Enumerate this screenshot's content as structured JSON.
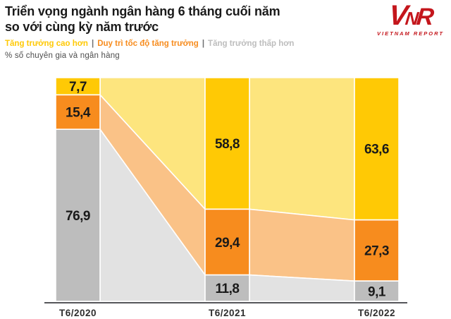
{
  "header": {
    "title_line1": "Triển vọng ngành ngân hàng 6 tháng cuối năm",
    "title_line2": "so với cùng kỳ năm trước",
    "legend_separator": "|",
    "unit_note": "% số chuyên gia và ngân hàng"
  },
  "logo": {
    "letters": [
      "V",
      "N",
      "R"
    ],
    "subtext": "VIETNAM REPORT",
    "color": "#c4161c"
  },
  "chart_data": {
    "type": "bar",
    "subtype": "stacked-percent-with-ribbons",
    "categories": [
      "T6/2020",
      "T6/2021",
      "T6/2022"
    ],
    "series": [
      {
        "name": "Tăng trưởng cao hơn",
        "values": [
          7.7,
          58.8,
          63.6
        ],
        "color": "#FFC905",
        "ribbon_color": "#FDE57E"
      },
      {
        "name": "Duy trì tốc độ tăng trưởng",
        "values": [
          15.4,
          29.4,
          27.3
        ],
        "color": "#F78C1E",
        "ribbon_color": "#FAC287"
      },
      {
        "name": "Tăng trưởng thấp hơn",
        "values": [
          76.9,
          11.8,
          9.1
        ],
        "color": "#BDBDBD",
        "ribbon_color": "#E2E2E2"
      }
    ],
    "value_format": "decimal-comma",
    "ylim": [
      0,
      100
    ],
    "grid": false,
    "legend_position": "top",
    "value_label_color": "#1a1a1a",
    "axis_line_color": "#55565a",
    "category_label_color": "#2e2e2e"
  }
}
